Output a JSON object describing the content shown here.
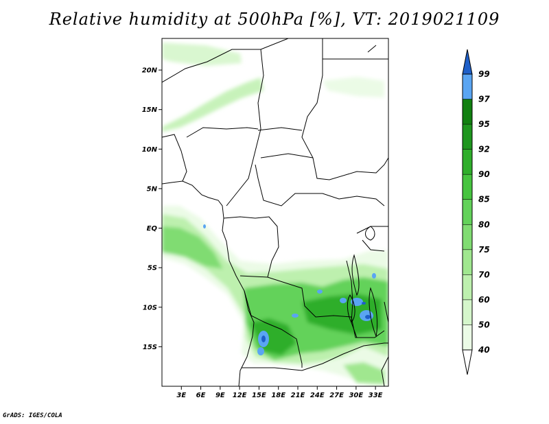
{
  "title": "Relative humidity at 500hPa [%], VT: 2019021109",
  "credit": "GrADS: IGES/COLA",
  "map": {
    "variable": "Relative humidity",
    "level": "500hPa",
    "units": "%",
    "valid_time": "2019021109",
    "lon_range": [
      0,
      35
    ],
    "lat_range": [
      -20,
      24
    ],
    "lat_labels": [
      {
        "value": 20,
        "label": "20N"
      },
      {
        "value": 15,
        "label": "15N"
      },
      {
        "value": 10,
        "label": "10N"
      },
      {
        "value": 5,
        "label": "5N"
      },
      {
        "value": 0,
        "label": "EQ"
      },
      {
        "value": -5,
        "label": "5S"
      },
      {
        "value": -10,
        "label": "10S"
      },
      {
        "value": -15,
        "label": "15S"
      }
    ],
    "lon_labels": [
      {
        "value": 3,
        "label": "3E"
      },
      {
        "value": 6,
        "label": "6E"
      },
      {
        "value": 9,
        "label": "9E"
      },
      {
        "value": 12,
        "label": "12E"
      },
      {
        "value": 15,
        "label": "15E"
      },
      {
        "value": 18,
        "label": "18E"
      },
      {
        "value": 21,
        "label": "21E"
      },
      {
        "value": 24,
        "label": "24E"
      },
      {
        "value": 27,
        "label": "27E"
      },
      {
        "value": 30,
        "label": "30E"
      },
      {
        "value": 33,
        "label": "33E"
      }
    ]
  },
  "colorbar": {
    "levels": [
      {
        "label": "40",
        "color": "#ebfbe6"
      },
      {
        "label": "50",
        "color": "#d5f6cb"
      },
      {
        "label": "60",
        "color": "#bdf0ae"
      },
      {
        "label": "70",
        "color": "#a0e78f"
      },
      {
        "label": "75",
        "color": "#80dc72"
      },
      {
        "label": "80",
        "color": "#63d25a"
      },
      {
        "label": "85",
        "color": "#46c43f"
      },
      {
        "label": "90",
        "color": "#2fae2b"
      },
      {
        "label": "92",
        "color": "#1e961e"
      },
      {
        "label": "95",
        "color": "#118010"
      },
      {
        "label": "97",
        "color": "#5aa5f2"
      },
      {
        "label": "99",
        "color": "#2e7ae0"
      }
    ],
    "bottom_color": "#ffffff",
    "top_color": "#1e5fc8"
  }
}
